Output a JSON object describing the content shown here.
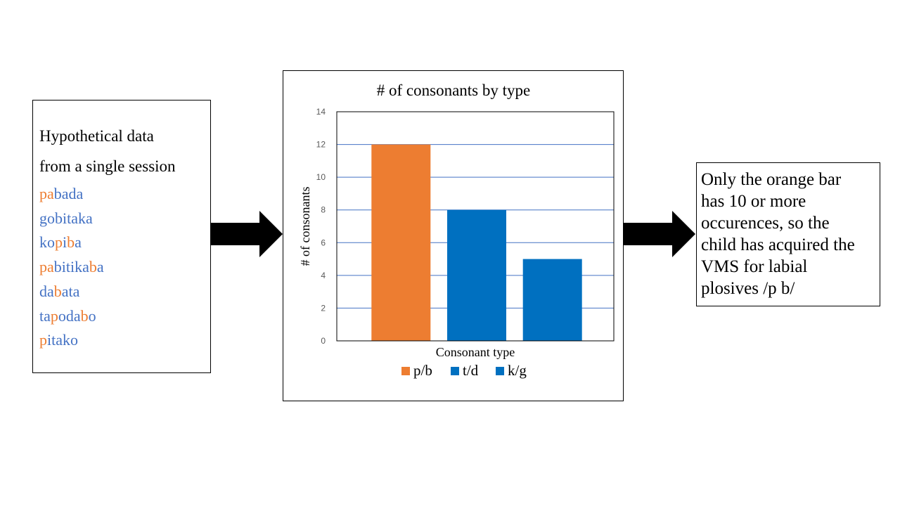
{
  "left_panel": {
    "heading_line1": "Hypothetical data",
    "heading_line2": "from a single session",
    "words": [
      [
        {
          "t": "pa",
          "c": "orange"
        },
        {
          "t": "b",
          "c": "blue"
        },
        {
          "t": "ada",
          "c": "blue"
        }
      ],
      [
        {
          "t": "gobitaka",
          "c": "blue"
        }
      ],
      [
        {
          "t": "ko",
          "c": "blue"
        },
        {
          "t": "p",
          "c": "orange"
        },
        {
          "t": "i",
          "c": "blue"
        },
        {
          "t": "b",
          "c": "orange"
        },
        {
          "t": "a",
          "c": "blue"
        }
      ],
      [
        {
          "t": "pa",
          "c": "orange"
        },
        {
          "t": "bitika",
          "c": "blue"
        },
        {
          "t": "b",
          "c": "orange"
        },
        {
          "t": "a",
          "c": "blue"
        }
      ],
      [
        {
          "t": "da",
          "c": "blue"
        },
        {
          "t": "b",
          "c": "orange"
        },
        {
          "t": "ata",
          "c": "blue"
        }
      ],
      [
        {
          "t": "ta",
          "c": "blue"
        },
        {
          "t": "p",
          "c": "orange"
        },
        {
          "t": "oda",
          "c": "blue"
        },
        {
          "t": "b",
          "c": "orange"
        },
        {
          "t": "o",
          "c": "blue"
        }
      ],
      [
        {
          "t": "p",
          "c": "orange"
        },
        {
          "t": "itako",
          "c": "blue"
        }
      ]
    ]
  },
  "chart_data": {
    "type": "bar",
    "title": "# of consonants by type",
    "xlabel": "Consonant type",
    "ylabel": "# of consonants",
    "ylim": [
      0,
      14
    ],
    "yticks": [
      0,
      2,
      4,
      6,
      8,
      10,
      12,
      14
    ],
    "grid": true,
    "legend_position": "bottom",
    "series": [
      {
        "name": "p/b",
        "values": [
          12
        ],
        "color": "#ED7D31"
      },
      {
        "name": "t/d",
        "values": [
          8
        ],
        "color": "#0070C0"
      },
      {
        "name": "k/g",
        "values": [
          5
        ],
        "color": "#0070C0"
      }
    ]
  },
  "right_panel": {
    "lines": [
      "Only the orange bar",
      "has 10 or more",
      "occurences, so the",
      "child has acquired the",
      "VMS for labial",
      "plosives /p b/"
    ]
  },
  "colors": {
    "orange": "#ED7D31",
    "blue": "#4472C4",
    "bar_blue": "#0070C0",
    "grid": "#4472C4"
  }
}
